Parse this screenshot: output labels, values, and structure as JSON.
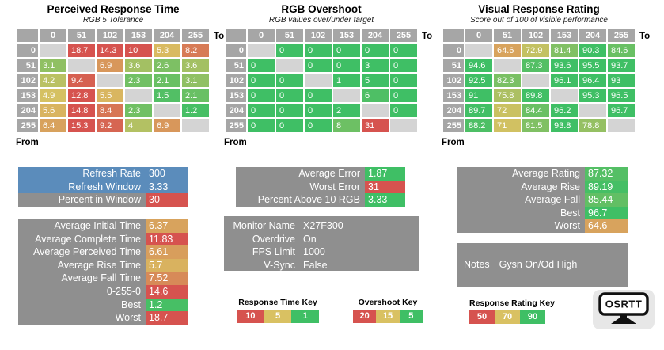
{
  "palette": {
    "red": "#d6534f",
    "yellow": "#d9c162",
    "green": "#3fbf65",
    "blue": "#5b8cbb",
    "block_gray": "#8f8f8f",
    "header_gray": "#a6a6a6",
    "diagonal_gray": "#d4d4d4",
    "logo_bg": "#e7e7e7"
  },
  "color_scales": {
    "response": [
      [
        1,
        "#3fbf65"
      ],
      [
        5,
        "#d9c162"
      ],
      [
        10,
        "#d6534f"
      ]
    ],
    "overshoot": [
      [
        5,
        "#3fbf65"
      ],
      [
        15,
        "#d9c162"
      ],
      [
        20,
        "#d6534f"
      ]
    ],
    "rating": [
      [
        50,
        "#d6534f"
      ],
      [
        70,
        "#d9c162"
      ],
      [
        90,
        "#3fbf65"
      ]
    ]
  },
  "chart_data": [
    {
      "type": "heatmap",
      "title": "Perceived Response Time",
      "subtitle": "RGB 5 Tolerance",
      "scale": "response",
      "col_axis_label": "To",
      "row_axis_label": "From",
      "columns": [
        "0",
        "51",
        "102",
        "153",
        "204",
        "255"
      ],
      "rows": [
        {
          "header": "0",
          "cells": [
            null,
            "18.7",
            "14.3",
            "10",
            "5.3",
            "8.2"
          ]
        },
        {
          "header": "51",
          "cells": [
            "3.1",
            null,
            "6.9",
            "3.6",
            "2.6",
            "3.6"
          ]
        },
        {
          "header": "102",
          "cells": [
            "4.2",
            "9.4",
            null,
            "2.3",
            "2.1",
            "3.1"
          ]
        },
        {
          "header": "153",
          "cells": [
            "4.9",
            "12.8",
            "5.5",
            null,
            "1.5",
            "2.1"
          ]
        },
        {
          "header": "204",
          "cells": [
            "5.6",
            "14.8",
            "8.4",
            "2.3",
            null,
            "1.2"
          ]
        },
        {
          "header": "255",
          "cells": [
            "6.4",
            "15.3",
            "9.2",
            "4",
            "6.9",
            null
          ]
        }
      ]
    },
    {
      "type": "heatmap",
      "title": "RGB Overshoot",
      "subtitle": "RGB values over/under target",
      "scale": "overshoot",
      "col_axis_label": "To",
      "row_axis_label": "From",
      "columns": [
        "0",
        "51",
        "102",
        "153",
        "204",
        "255"
      ],
      "rows": [
        {
          "header": "0",
          "cells": [
            null,
            "0",
            "0",
            "0",
            "0",
            "0"
          ]
        },
        {
          "header": "51",
          "cells": [
            "0",
            null,
            "0",
            "0",
            "3",
            "0"
          ]
        },
        {
          "header": "102",
          "cells": [
            "0",
            "0",
            null,
            "1",
            "5",
            "0"
          ]
        },
        {
          "header": "153",
          "cells": [
            "0",
            "0",
            "0",
            null,
            "6",
            "0"
          ]
        },
        {
          "header": "204",
          "cells": [
            "0",
            "0",
            "0",
            "2",
            null,
            "0"
          ]
        },
        {
          "header": "255",
          "cells": [
            "0",
            "0",
            "0",
            "8",
            "31",
            null
          ]
        }
      ]
    },
    {
      "type": "heatmap",
      "title": "Visual Response Rating",
      "subtitle": "Score out of 100 of visible performance",
      "scale": "rating",
      "col_axis_label": "To",
      "row_axis_label": "From",
      "columns": [
        "0",
        "51",
        "102",
        "153",
        "204",
        "255"
      ],
      "rows": [
        {
          "header": "0",
          "cells": [
            null,
            "64.6",
            "72.9",
            "81.4",
            "90.3",
            "84.6"
          ]
        },
        {
          "header": "51",
          "cells": [
            "94.6",
            null,
            "87.3",
            "93.6",
            "95.5",
            "93.7"
          ]
        },
        {
          "header": "102",
          "cells": [
            "92.5",
            "82.3",
            null,
            "96.1",
            "96.4",
            "93"
          ]
        },
        {
          "header": "153",
          "cells": [
            "91",
            "75.8",
            "89.8",
            null,
            "95.3",
            "96.5"
          ]
        },
        {
          "header": "204",
          "cells": [
            "89.7",
            "72",
            "84.4",
            "96.2",
            null,
            "96.7"
          ]
        },
        {
          "header": "255",
          "cells": [
            "88.2",
            "71",
            "81.5",
            "93.8",
            "78.8",
            null
          ]
        }
      ]
    }
  ],
  "panels": [
    {
      "id": "refresh-stats",
      "rows": [
        {
          "label": "Refresh Rate",
          "value": "300",
          "row_bg": "#5b8cbb"
        },
        {
          "label": "Refresh Window",
          "value": "3.33",
          "row_bg": "#5b8cbb"
        },
        {
          "label": "Percent in Window",
          "value": "30",
          "scale": "response"
        }
      ]
    },
    {
      "id": "response-averages",
      "rows": [
        {
          "label": "Average Initial Time",
          "value": "6.37",
          "scale": "response"
        },
        {
          "label": "Average Complete Time",
          "value": "11.83",
          "scale": "response"
        },
        {
          "label": "Average Perceived Time",
          "value": "6.61",
          "scale": "response"
        },
        {
          "label": "Average Rise Time",
          "value": "5.7",
          "scale": "response"
        },
        {
          "label": "Average Fall Time",
          "value": "7.52",
          "scale": "response"
        },
        {
          "label": "0-255-0",
          "value": "14.6",
          "scale": "response"
        },
        {
          "label": "Best",
          "value": "1.2",
          "scale": "response"
        },
        {
          "label": "Worst",
          "value": "18.7",
          "scale": "response"
        }
      ]
    },
    {
      "id": "overshoot-summary",
      "rows": [
        {
          "label": "Average Error",
          "value": "1.87",
          "scale": "overshoot"
        },
        {
          "label": "Worst Error",
          "value": "31",
          "scale": "overshoot"
        },
        {
          "label": "Percent Above 10 RGB",
          "value": "3.33",
          "scale": "overshoot"
        }
      ]
    },
    {
      "id": "monitor-info",
      "rows": [
        {
          "label": "Monitor Name",
          "value": "X27F300"
        },
        {
          "label": "Overdrive",
          "value": "On"
        },
        {
          "label": "FPS Limit",
          "value": "1000"
        },
        {
          "label": "V-Sync",
          "value": "False"
        }
      ]
    },
    {
      "id": "rating-summary",
      "rows": [
        {
          "label": "Average Rating",
          "value": "87.32",
          "scale": "rating"
        },
        {
          "label": "Average Rise",
          "value": "89.19",
          "scale": "rating"
        },
        {
          "label": "Average Fall",
          "value": "85.44",
          "scale": "rating"
        },
        {
          "label": "Best",
          "value": "96.7",
          "scale": "rating"
        },
        {
          "label": "Worst",
          "value": "64.6",
          "scale": "rating"
        }
      ]
    },
    {
      "id": "notes",
      "rows": [
        {
          "label": "Notes",
          "value": "Gysn On/Od High"
        }
      ]
    }
  ],
  "keys": [
    {
      "title": "Response Time Key",
      "segments": [
        {
          "label": "10",
          "color": "#d6534f"
        },
        {
          "label": "5",
          "color": "#d9c162"
        },
        {
          "label": "1",
          "color": "#3fbf65"
        }
      ]
    },
    {
      "title": "Overshoot Key",
      "segments": [
        {
          "label": "20",
          "color": "#d6534f"
        },
        {
          "label": "15",
          "color": "#d9c162"
        },
        {
          "label": "5",
          "color": "#3fbf65"
        }
      ]
    },
    {
      "title": "Response Rating Key",
      "segments": [
        {
          "label": "50",
          "color": "#d6534f"
        },
        {
          "label": "70",
          "color": "#d9c162"
        },
        {
          "label": "90",
          "color": "#3fbf65"
        }
      ]
    }
  ],
  "logo": {
    "text": "OSRTT"
  }
}
